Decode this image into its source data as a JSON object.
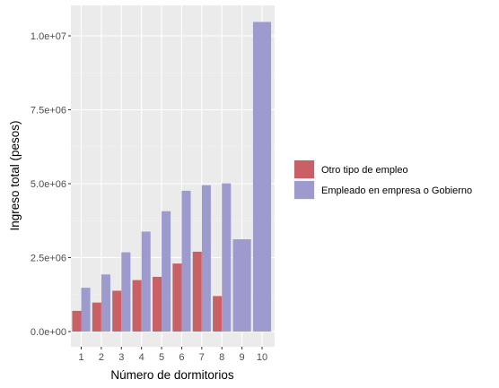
{
  "chart_data": {
    "type": "bar",
    "title": "",
    "xlabel": "Número de dormitorios",
    "ylabel": "Ingreso total (pesos)",
    "categories": [
      "1",
      "2",
      "3",
      "4",
      "5",
      "6",
      "7",
      "8",
      "9",
      "10"
    ],
    "ylim": [
      0,
      10500000
    ],
    "yticks": [
      0,
      2500000,
      5000000,
      7500000,
      10000000
    ],
    "ytick_labels": [
      "0.0e+00",
      "2.5e+06",
      "5.0e+06",
      "7.5e+06",
      "1.0e+07"
    ],
    "grid": true,
    "legend_position": "right",
    "series": [
      {
        "name": "Otro tipo de empleo",
        "color": "#c96066",
        "values": [
          700000,
          980000,
          1380000,
          1740000,
          1850000,
          2300000,
          2700000,
          1200000,
          null,
          null
        ]
      },
      {
        "name": "Empleado en empresa o Gobierno",
        "color": "#9d9bce",
        "values": [
          1480000,
          1930000,
          2680000,
          3380000,
          4070000,
          4760000,
          4950000,
          5010000,
          3120000,
          10470000
        ]
      }
    ],
    "colors": {
      "panel_background": "#ebebeb",
      "grid_major": "#ffffff",
      "grid_minor": "#f3f3f3"
    }
  }
}
